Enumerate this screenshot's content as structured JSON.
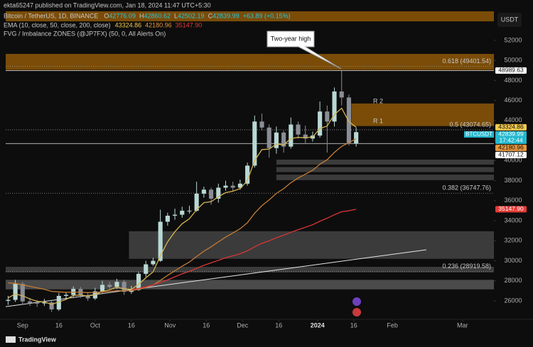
{
  "chart_data": {
    "type": "candlestick",
    "publisher": "ekta65247 published on TradingView.com, Jan 18, 2024 11:47 UTC+5:30",
    "symbol": "Bitcoin / TetherUS, 1D, BINANCE",
    "ohlc_legend": [
      {
        "key": "O",
        "value": 42776.09
      },
      {
        "key": "H",
        "value": 42860.62
      },
      {
        "key": "L",
        "value": 42502.19
      },
      {
        "key": "C",
        "value": 42839.99
      }
    ],
    "change": "+63.89 (+0.15%)",
    "ema_legend": "EMA (10, close, 50, close, 200, close)",
    "fvg_legend": "FVG / Imbalance ZONES (@JP7FX) (50, 0, All Alerts On)",
    "currency": "USDT",
    "footer": "TradingView",
    "annotations": [
      "Two-year high",
      "R 2",
      "R 1"
    ],
    "up_color": "#b8d8d4",
    "down_color": "#8a8d96",
    "x": [
      -6,
      -3,
      0,
      3,
      6,
      9,
      12,
      15,
      18,
      21,
      24,
      27,
      30,
      33,
      36,
      39,
      42,
      45,
      48,
      51,
      54,
      57,
      60,
      63,
      66,
      69,
      72,
      75,
      78,
      81,
      84,
      87,
      90,
      93,
      96,
      99,
      102,
      105,
      108,
      111,
      114,
      117,
      120,
      123,
      126,
      129,
      132,
      135,
      138
    ],
    "open": [
      26000,
      26100,
      27700,
      25950,
      25800,
      25750,
      25850,
      25150,
      26500,
      26600,
      27200,
      26580,
      26250,
      26950,
      27600,
      27400,
      27900,
      26900,
      27100,
      28700,
      29650,
      30000,
      33900,
      34500,
      34600,
      35000,
      35000,
      36700,
      37100,
      36200,
      37300,
      37500,
      37300,
      37700,
      39500,
      43900,
      43300,
      41250,
      42800,
      41400,
      43600,
      42600,
      42200,
      42500,
      44900,
      43900,
      46900,
      46300,
      41700
    ],
    "high": [
      26500,
      28100,
      27900,
      26300,
      26100,
      26200,
      26100,
      26800,
      26900,
      27450,
      27400,
      26800,
      27300,
      28000,
      27900,
      28200,
      28100,
      27500,
      28900,
      30000,
      30300,
      35100,
      34800,
      35200,
      35400,
      35500,
      37900,
      37400,
      37300,
      37700,
      38000,
      37900,
      38100,
      39800,
      44500,
      44700,
      43600,
      43400,
      43000,
      44300,
      43900,
      43500,
      42900,
      45900,
      45500,
      47300,
      48970,
      46600,
      43300
    ],
    "low": [
      25600,
      25900,
      25600,
      25500,
      25400,
      25500,
      24900,
      25000,
      26200,
      26400,
      26300,
      26000,
      26100,
      26800,
      27200,
      27200,
      26600,
      26700,
      27000,
      28400,
      29500,
      29900,
      33500,
      34100,
      34300,
      34700,
      34900,
      36300,
      35600,
      35800,
      37000,
      36900,
      37100,
      37500,
      39300,
      43000,
      40300,
      40700,
      40800,
      41200,
      42200,
      41700,
      41900,
      42300,
      40800,
      43400,
      45500,
      41500,
      41400
    ],
    "close": [
      26100,
      27700,
      25950,
      25800,
      25750,
      25850,
      25150,
      26500,
      26600,
      27200,
      26580,
      26250,
      26950,
      27600,
      27400,
      27900,
      26900,
      27100,
      28700,
      29650,
      30000,
      33900,
      34500,
      34600,
      35000,
      35000,
      36700,
      37100,
      36200,
      37300,
      37500,
      37300,
      37700,
      39500,
      43900,
      43300,
      41250,
      42800,
      41400,
      43600,
      42600,
      42200,
      42500,
      44900,
      43900,
      46900,
      46300,
      41700,
      42840
    ],
    "series": [
      {
        "color": "#d6b452",
        "values": [
          26300,
          26700,
          26500,
          26200,
          25950,
          25900,
          25650,
          25900,
          26150,
          26550,
          26580,
          26480,
          26620,
          26950,
          27100,
          27370,
          27200,
          27150,
          27650,
          28300,
          28900,
          30500,
          31900,
          32900,
          33700,
          34200,
          35100,
          35800,
          35900,
          36400,
          36800,
          36950,
          37200,
          38000,
          40000,
          41100,
          41150,
          41650,
          41570,
          42200,
          42320,
          42280,
          42360,
          43200,
          43450,
          44600,
          45230,
          43900,
          43324.86
        ]
      },
      {
        "color": "#c47d34",
        "values": [
          27800,
          27750,
          27600,
          27450,
          27300,
          27150,
          26950,
          26900,
          26850,
          26880,
          26860,
          26830,
          26840,
          26900,
          26950,
          27020,
          27010,
          27020,
          27150,
          27350,
          27580,
          28050,
          28550,
          29000,
          29460,
          29880,
          30430,
          30960,
          31400,
          31890,
          32360,
          32780,
          33200,
          33800,
          34750,
          35500,
          36080,
          36730,
          37200,
          37800,
          38260,
          38650,
          39040,
          39640,
          40090,
          40820,
          41420,
          41800,
          42180.96
        ]
      },
      {
        "color": "#d93636",
        "values": [
          null,
          null,
          null,
          null,
          null,
          null,
          null,
          null,
          null,
          null,
          null,
          null,
          null,
          null,
          null,
          null,
          null,
          27100,
          27250,
          27400,
          27600,
          27850,
          28100,
          28400,
          28700,
          28950,
          29250,
          29550,
          29800,
          30050,
          30300,
          30500,
          30700,
          31000,
          31400,
          31750,
          32000,
          32300,
          32550,
          32850,
          33100,
          33350,
          33600,
          33950,
          34250,
          34600,
          34900,
          35000,
          35147.9
        ]
      }
    ],
    "trendline": {
      "x": [
        -7,
        167
      ],
      "values": [
        25430,
        31100
      ],
      "color": "#e6e6e6"
    },
    "zones": [
      {
        "x0": -7,
        "range": [
          53900,
          54900
        ],
        "color": "#7a4c08"
      },
      {
        "x0": -7,
        "range": [
          49050,
          50650
        ],
        "color": "#7a4c08"
      },
      {
        "x0": 136,
        "range": [
          43450,
          45700
        ],
        "color": "#7a4c08"
      },
      {
        "x0": 105,
        "range": [
          39600,
          40100
        ],
        "color": "#3b3b3b"
      },
      {
        "x0": 105,
        "range": [
          38850,
          39350
        ],
        "color": "#3b3b3b"
      },
      {
        "x0": 105,
        "range": [
          38050,
          38600
        ],
        "color": "#3b3b3b"
      },
      {
        "x0": 44,
        "range": [
          30200,
          32950
        ],
        "color": "#3b3b3b"
      },
      {
        "x0": -7,
        "range": [
          28850,
          29400
        ],
        "color": "#3b3b3b"
      },
      {
        "x0": -7,
        "range": [
          27150,
          28100
        ],
        "color": "#4a4a4a"
      }
    ],
    "fib_levels": [
      {
        "value": 49401.54,
        "label": "0.618 (49401.54)"
      },
      {
        "value": 43074.65,
        "label": "0.5 (43074.65)"
      },
      {
        "value": 36747.76,
        "label": "0.382 (36747.76)"
      },
      {
        "value": 28919.58,
        "label": "0.236 (28919.58)"
      }
    ],
    "price_badges": [
      {
        "value": 48989.63,
        "bg": "#ffffff",
        "fg": "#111111",
        "line": true
      },
      {
        "value": 43324.86,
        "bg": "#f2c94c",
        "fg": "#111111"
      },
      {
        "value": 42839.99,
        "bg": "#22b8cf",
        "fg": "#ffffff",
        "symbol": "BTCUSDT",
        "countdown": "17:42:44"
      },
      {
        "value": 42180.96,
        "bg": "#e8963a",
        "fg": "#111111"
      },
      {
        "value": 41707.12,
        "bg": "#ffffff",
        "fg": "#111111",
        "line": true
      },
      {
        "value": 35147.9,
        "label": "35147.90",
        "bg": "#e53935",
        "fg": "#ffffff"
      }
    ],
    "xlim": [
      -7,
      195
    ],
    "ylim": [
      24160,
      56030
    ],
    "xticks": [
      {
        "value": 0,
        "label": "Sep"
      },
      {
        "value": 15,
        "label": "16"
      },
      {
        "value": 30,
        "label": "Oct"
      },
      {
        "value": 45,
        "label": "16"
      },
      {
        "value": 61,
        "label": "Nov"
      },
      {
        "value": 76,
        "label": "16"
      },
      {
        "value": 91,
        "label": "Dec"
      },
      {
        "value": 106,
        "label": "16"
      },
      {
        "value": 122,
        "label": "2024"
      },
      {
        "value": 137,
        "label": "16"
      },
      {
        "value": 153,
        "label": "Feb"
      },
      {
        "value": 182,
        "label": "Mar"
      }
    ],
    "yticks": [
      26000,
      28000,
      30000,
      32000,
      34000,
      36000,
      38000,
      40000,
      42000,
      44000,
      46000,
      48000,
      50000,
      52000
    ]
  }
}
